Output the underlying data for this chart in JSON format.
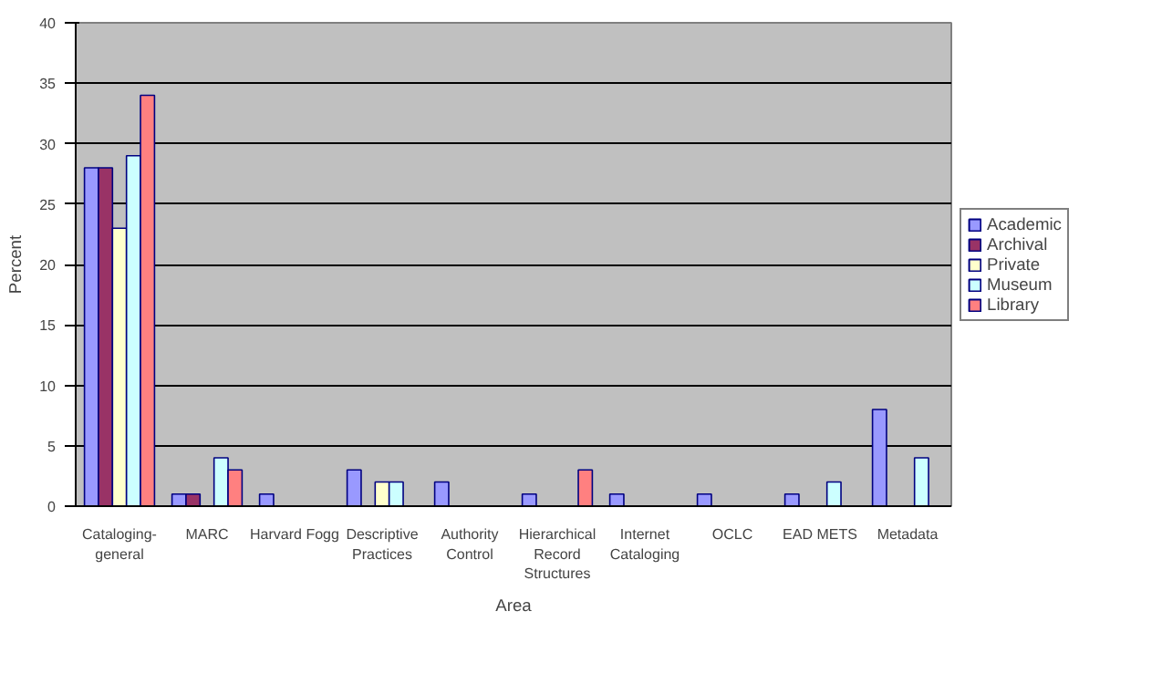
{
  "chart_data": {
    "type": "bar",
    "xlabel": "Area",
    "ylabel": "Percent",
    "categories": [
      "Cataloging-general",
      "MARC",
      "Harvard Fogg",
      "Descriptive Practices",
      "Authority Control",
      "Hierarchical Record Structures",
      "Internet Cataloging",
      "OCLC",
      "EAD METS",
      "Metadata"
    ],
    "series": [
      {
        "name": "Academic",
        "color": "#9999ff",
        "values": [
          28,
          1,
          1,
          3,
          2,
          1,
          1,
          1,
          1,
          8
        ]
      },
      {
        "name": "Archival",
        "color": "#993366",
        "values": [
          28,
          1,
          null,
          null,
          null,
          null,
          null,
          null,
          null,
          null
        ]
      },
      {
        "name": "Private",
        "color": "#ffffcc",
        "values": [
          23,
          null,
          null,
          2,
          null,
          null,
          null,
          null,
          null,
          null
        ]
      },
      {
        "name": "Museum",
        "color": "#ccffff",
        "values": [
          29,
          4,
          null,
          2,
          null,
          null,
          null,
          null,
          2,
          4
        ]
      },
      {
        "name": "Library",
        "color": "#ff8080",
        "values": [
          34,
          3,
          null,
          null,
          null,
          3,
          null,
          null,
          null,
          null
        ]
      }
    ],
    "ylim": [
      0,
      40
    ],
    "yticks": [
      0,
      5,
      10,
      15,
      20,
      25,
      30,
      35,
      40
    ],
    "grid": "y",
    "legend": "right"
  }
}
